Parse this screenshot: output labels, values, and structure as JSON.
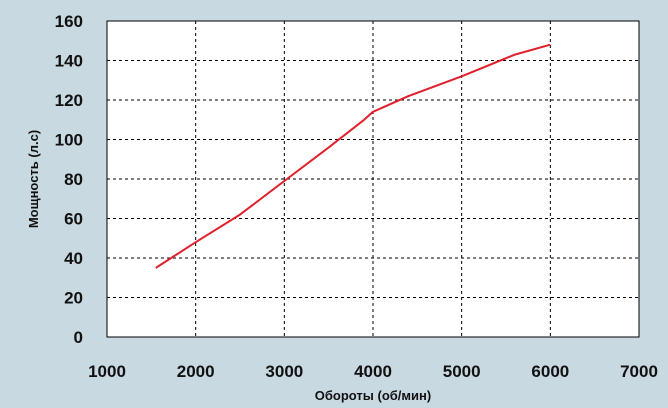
{
  "chart_data": {
    "type": "line",
    "xlabel": "Обороты (об/мин)",
    "ylabel": "Мощность (л.с)",
    "xlim": [
      1000,
      7000
    ],
    "ylim": [
      0,
      160
    ],
    "x_ticks": [
      "1000",
      "2000",
      "3000",
      "4000",
      "5000",
      "6000",
      "7000"
    ],
    "y_ticks": [
      "0",
      "20",
      "40",
      "60",
      "80",
      "100",
      "120",
      "140",
      "160"
    ],
    "grid": true,
    "series": [
      {
        "color": "#e0202c",
        "x": [
          1550,
          2000,
          2500,
          3000,
          3500,
          3900,
          4000,
          4400,
          5000,
          5600,
          6000
        ],
        "y": [
          35,
          48,
          62,
          79,
          96,
          110,
          114,
          122,
          132,
          143,
          148
        ]
      }
    ]
  }
}
